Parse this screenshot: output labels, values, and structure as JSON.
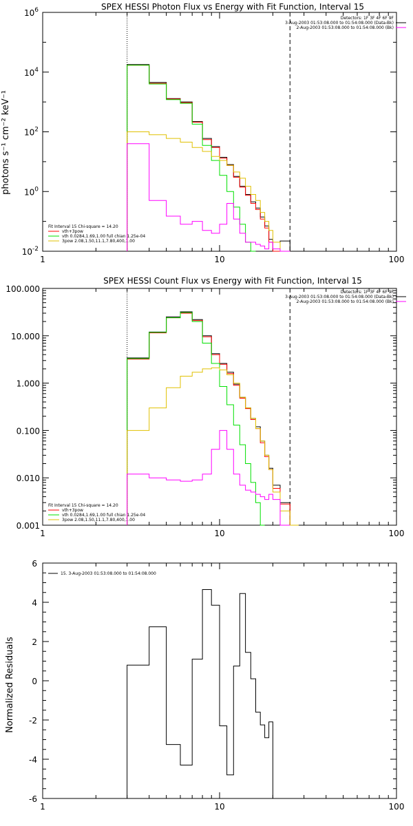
{
  "chart_data": [
    {
      "type": "line",
      "title": "SPEX HESSI Photon Flux vs Energy with Fit Function, Interval 15",
      "xlabel": "",
      "ylabel": "photons s⁻¹ cm⁻² keV⁻¹",
      "xscale": "log",
      "yscale": "log",
      "xlim": [
        1,
        100
      ],
      "ylim": [
        0.01,
        1000000
      ],
      "x_tick_labels": [
        "1",
        "10",
        "100"
      ],
      "y_tick_labels": [
        {
          "base": "10",
          "exp": "-2"
        },
        {
          "base": "10",
          "exp": "0"
        },
        {
          "base": "10",
          "exp": "2"
        },
        {
          "base": "10",
          "exp": "4"
        },
        {
          "base": "10",
          "exp": "6"
        }
      ],
      "header_info": [
        "Detectors: 1F 3F 4F 6F 9F",
        "3-Aug-2003 01:53:08.000 to 01:54:08.000 (Data-Bk)",
        "2-Aug-2003 01:53:08.000 to 01:54:08.000 (Bk)"
      ],
      "fit_info": [
        "Fit Interval 15   Chi-square = 14.20",
        "vth+3pow",
        "vth 0.0284,1.69,1.00  full chian 1.25e-04",
        "3pow 2.08,1.50,11.1,7.80,400,1.00"
      ],
      "vlines": [
        {
          "x": 3,
          "style": "dotted"
        },
        {
          "x": 25,
          "style": "dashed"
        }
      ],
      "edges": [
        3,
        4,
        5,
        6,
        7,
        8,
        9,
        10,
        11,
        12,
        13,
        14,
        15,
        16,
        17,
        18,
        19,
        20,
        22,
        25,
        28,
        31
      ],
      "series": [
        {
          "color": "#000000",
          "values": [
            18000,
            4500,
            1300,
            1000,
            220,
            60,
            32,
            14,
            8,
            3.2,
            1.5,
            0.8,
            0.45,
            0.28,
            0.14,
            0.07,
            0.025,
            0.01,
            0.022
          ]
        },
        {
          "color": "#ff0000",
          "values": [
            17000,
            4200,
            1250,
            950,
            210,
            55,
            30,
            13,
            7.5,
            3.0,
            1.4,
            0.75,
            0.4,
            0.25,
            0.12,
            0.06,
            0.02,
            0.009
          ]
        },
        {
          "color": "#00e000",
          "values": [
            17000,
            4000,
            1200,
            900,
            180,
            35,
            11,
            3.5,
            1.0,
            0.3,
            0.08,
            0.02,
            0.006
          ]
        },
        {
          "color": "#e0c000",
          "values": [
            100,
            80,
            60,
            45,
            30,
            22,
            15,
            11,
            7.5,
            4.5,
            2.8,
            1.5,
            0.8,
            0.5,
            0.2,
            0.1,
            0.05,
            0.02,
            0.008
          ]
        },
        {
          "color": "#ff00ff",
          "values": [
            40,
            0.5,
            0.15,
            0.08,
            0.1,
            0.05,
            0.04,
            0.08,
            0.4,
            0.12,
            0.04,
            0.02,
            0.02,
            0.017,
            0.015,
            0.012,
            0.02,
            0.012,
            0.005
          ]
        }
      ]
    },
    {
      "type": "line",
      "title": "SPEX HESSI Count Flux vs Energy with Fit Function, Interval 15",
      "xlabel": "",
      "ylabel": "",
      "xscale": "log",
      "yscale": "log",
      "xlim": [
        1,
        100
      ],
      "ylim": [
        0.001,
        100
      ],
      "x_tick_labels": [
        "1",
        "10",
        "100"
      ],
      "y_tick_labels": [
        "0.001",
        "0.010",
        "0.100",
        "1.000",
        "10.000",
        "100.000"
      ],
      "header_info": [
        "Detectors: 1F 3F 4F 6F 9F",
        "3-Aug-2003 01:53:08.000 to 01:54:08.000 (Data-Bk)",
        "2-Aug-2003 01:53:08.000 to 01:54:08.000 (Bk)"
      ],
      "fit_info": [
        "Fit Interval 15   Chi-square = 14.20",
        "vth+3pow",
        "vth 0.0284,1.69,1.00  full chian 1.25e-04",
        "3pow 2.08,1.50,11.1,7.80,400,1.00"
      ],
      "vlines": [
        {
          "x": 3,
          "style": "dotted"
        },
        {
          "x": 25,
          "style": "dashed"
        }
      ],
      "edges": [
        3,
        4,
        5,
        6,
        7,
        8,
        9,
        10,
        11,
        12,
        13,
        14,
        15,
        16,
        17,
        18,
        19,
        20,
        22,
        25,
        28,
        31
      ],
      "series": [
        {
          "color": "#000000",
          "values": [
            3.4,
            12,
            25,
            32,
            22,
            10,
            4.2,
            2.6,
            1.7,
            0.95,
            0.5,
            0.3,
            0.18,
            0.12,
            0.06,
            0.03,
            0.016,
            0.007,
            0.003
          ]
        },
        {
          "color": "#ff0000",
          "values": [
            3.2,
            11.5,
            24,
            30,
            21,
            9.5,
            4.0,
            2.5,
            1.6,
            0.9,
            0.48,
            0.29,
            0.17,
            0.11,
            0.055,
            0.028,
            0.015,
            0.006,
            0.0028
          ]
        },
        {
          "color": "#00e000",
          "values": [
            3.3,
            11.8,
            24,
            31,
            20,
            7,
            2.6,
            0.85,
            0.35,
            0.13,
            0.05,
            0.02,
            0.008,
            0.003,
            0.001
          ]
        },
        {
          "color": "#e0c000",
          "values": [
            0.1,
            0.3,
            0.8,
            1.4,
            1.7,
            2.0,
            2.1,
            1.9,
            1.5,
            1.0,
            0.5,
            0.3,
            0.18,
            0.11,
            0.06,
            0.03,
            0.015,
            0.005,
            0.002,
            0.001
          ]
        },
        {
          "color": "#ff00ff",
          "values": [
            0.012,
            0.01,
            0.009,
            0.0085,
            0.009,
            0.012,
            0.04,
            0.1,
            0.04,
            0.012,
            0.007,
            0.0055,
            0.005,
            0.0045,
            0.004,
            0.0035,
            0.0045,
            0.0035,
            0.001
          ]
        }
      ]
    },
    {
      "type": "line",
      "title": "",
      "xlabel": "",
      "ylabel": "Normalized Residuals",
      "xscale": "log",
      "yscale": "linear",
      "xlim": [
        1,
        100
      ],
      "ylim": [
        -6,
        6
      ],
      "x_tick_labels": [
        "1",
        "10",
        "100"
      ],
      "y_tick_labels": [
        "-6",
        "-4",
        "-2",
        "0",
        "2",
        "4",
        "6"
      ],
      "legend": "15.  3-Aug-2003 01:53:08.000 to 01:54:08.000",
      "legend_position": "top-left",
      "edges": [
        3,
        4,
        5,
        6,
        7,
        8,
        9,
        10,
        11,
        12,
        13,
        14,
        15,
        16,
        17,
        18,
        19,
        20,
        22,
        25
      ],
      "series": [
        {
          "color": "#000000",
          "values": [
            0.8,
            2.75,
            -3.25,
            -4.3,
            1.1,
            4.65,
            3.85,
            -2.3,
            -4.8,
            0.75,
            4.45,
            1.45,
            0.1,
            -1.6,
            -2.25,
            -2.9,
            -2.1
          ]
        }
      ]
    }
  ]
}
